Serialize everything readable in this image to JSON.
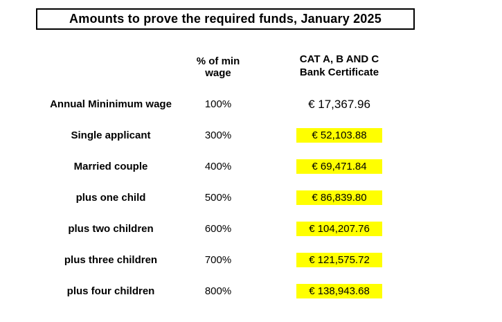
{
  "title": "Amounts to prove the required funds, January 2025",
  "table": {
    "header": {
      "percent_col": "% of min wage",
      "amount_col_line1": "CAT A, B AND C",
      "amount_col_line2": "Bank Certificate"
    },
    "rows": [
      {
        "label": "Annual Mininimum wage",
        "percent": "100%",
        "amount": "€ 17,367.96",
        "highlighted": false
      },
      {
        "label": "Single applicant",
        "percent": "300%",
        "amount": "€ 52,103.88",
        "highlighted": true
      },
      {
        "label": "Married couple",
        "percent": "400%",
        "amount": "€ 69,471.84",
        "highlighted": true
      },
      {
        "label": "plus one child",
        "percent": "500%",
        "amount": "€ 86,839.80",
        "highlighted": true
      },
      {
        "label": "plus two children",
        "percent": "600%",
        "amount": "€ 104,207.76",
        "highlighted": true
      },
      {
        "label": "plus three children",
        "percent": "700%",
        "amount": "€ 121,575.72",
        "highlighted": true
      },
      {
        "label": "plus four children",
        "percent": "800%",
        "amount": "€ 138,943.68",
        "highlighted": true
      }
    ]
  },
  "colors": {
    "highlight": "#FFFF00",
    "text": "#000000",
    "background": "#FFFFFF",
    "title_border": "#000000"
  }
}
